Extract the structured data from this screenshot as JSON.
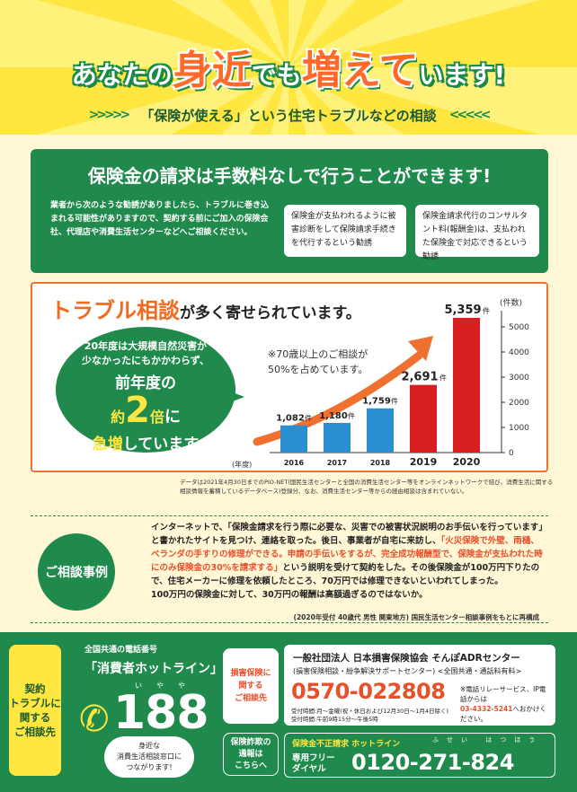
{
  "header": {
    "title_parts": [
      "あなたの",
      "身近",
      "でも",
      "増えて",
      "います!"
    ],
    "subtitle": "「保険が使える」という住宅トラブルなどの相談"
  },
  "claim": {
    "title": "保険金の請求は手数料なしで行うことができます!",
    "desc": "業者から次のような勧誘がありましたら、トラブルに巻き込まれる可能性がありますので、契約する前にご加入の保険会社、代理店や消費生活センターなどへご相談ください。",
    "card1": "保険金が支払われるように被害診断をして保険請求手続きを代行するという勧誘",
    "card2": "保険金請求代行のコンサルタント料(報酬金)は、支払われた保険金で対応できるという勧誘"
  },
  "trouble": {
    "title_big": "トラブル相談",
    "title_rest": "が多く寄せられています。",
    "bubble_l1": "20年度は大規模自然災害が",
    "bubble_l2": "少なかったにもかかわらず、",
    "bubble_l3": "前年度の",
    "bubble_yaku": "約",
    "bubble_num": "2",
    "bubble_bai": "倍",
    "bubble_ni": "に",
    "bubble_l5a": "急増",
    "bubble_l5b": "しています",
    "note": "※70歳以上のご相談が\n50%を占めています。"
  },
  "chart_data": {
    "type": "bar",
    "categories": [
      "2016",
      "2017",
      "2018",
      "2019",
      "2020"
    ],
    "values": [
      1082,
      1180,
      1759,
      2691,
      5359
    ],
    "value_labels": [
      "1,082",
      "1,180",
      "1,759",
      "2,691",
      "5,359"
    ],
    "value_unit": "件",
    "ylim": [
      0,
      5000
    ],
    "yticks": [
      "0",
      "1000",
      "2000",
      "3000",
      "4000",
      "5000"
    ],
    "yunit": "(件数)",
    "xlabel": "(年度)",
    "colors": [
      "#2a8fd0",
      "#2a8fd0",
      "#2a8fd0",
      "#d81e1e",
      "#d81e1e"
    ]
  },
  "footnote": "データは2021年4月30日までのPIO-NET(国民生活センターと全国の消費生活センター等をオンラインネットワークで結び、消費生活に関する相談情報を蓄積しているデータベース)登録分、なお、消費生活センター等からの経由相談は含まれていない。",
  "case": {
    "badge": "ご相談事例",
    "p1": "インターネットで、「保険金請求を行う際に必要な、災害での被害状況説明のお手伝いを行っています」と書かれたサイトを見つけ、連絡を取った。後日、事業者が自宅に来訪し、",
    "p1_red": "「火災保険で外壁、雨樋、ベランダの手すりの修理ができる。申請の手伝いをするが、完全成功報酬型で、保険金が支払われた時にのみ保険金の30%を請求する」",
    "p2": "という説明を受けて契約をした。その後保険金が100万円下りたので、住宅メーカーに修理を依頼したところ、70万円では修理できないといわれてしまった。",
    "p3": "100万円の保険金に対して、30万円の報酬は高額過ぎるのではないか。",
    "source": "(2020年受付 40歳代 男性 関東地方) 国民生活センター相談事例をもとに再構成"
  },
  "bottom": {
    "ybox": "契約\nトラブルに\n関する\nご相談先",
    "hl_sub": "全国共通の電話番号",
    "hl_title": "「消費者ホットライン」",
    "kana": "いやや",
    "number": "188",
    "consult": "身近な\n消費生活相談窓口に\nつながります!",
    "ins_btn": "損害保険に\n関する\nご相談先",
    "fraud_btn": "保険詐欺の\n通報は\nこちらへ",
    "adr_t1": "一般社団法人 日本損害保険協会 そんぽADRセンター",
    "adr_t2": "(損害保険相談・紛争解決サポートセンター) <全国共通・通話料有料>",
    "adr_tel": "0570-022808",
    "adr_hours": "受付時間:月～金曜(祝・休日および12月30日～1月4日除く)\n受付時間:午前9時15分～午後5時",
    "adr_side": "※電話リレーサービス、IP電話からは",
    "adr_side_tel": "03-4332-5241",
    "adr_side_end": "へおかけください。",
    "fraud_t1": "保険金不正請求 ホットライン",
    "fraud_t2": "専用フリー\nダイヤル",
    "fraud_kana": "ふせい はつほう",
    "fraud_tel": "0120-271-824"
  }
}
